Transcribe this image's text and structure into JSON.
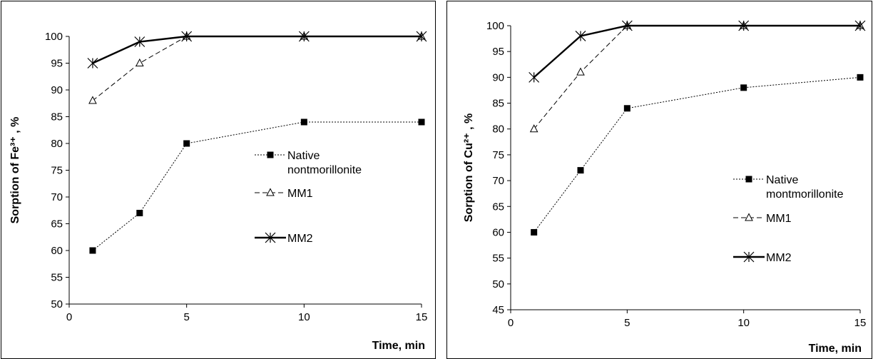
{
  "chart_data": [
    {
      "type": "line",
      "title": "",
      "xlabel": "Time, min",
      "ylabel": "Sorption of Fe³⁺ , %",
      "xlim": [
        0,
        15
      ],
      "ylim": [
        50,
        100
      ],
      "xticks": [
        0,
        5,
        10,
        15
      ],
      "yticks": [
        50,
        55,
        60,
        65,
        70,
        75,
        80,
        85,
        90,
        95,
        100
      ],
      "grid": false,
      "legend_position": "right",
      "series": [
        {
          "name": "Native nontmorillonite",
          "legend_lines": [
            "Native",
            "nontmorillonite"
          ],
          "style": "dotted",
          "marker": "filled-square",
          "color": "#000000",
          "x": [
            1,
            3,
            5,
            10,
            15
          ],
          "y": [
            60,
            67,
            80,
            84,
            84
          ]
        },
        {
          "name": "MM1",
          "legend_lines": [
            "MM1"
          ],
          "style": "dashed",
          "marker": "open-triangle",
          "color": "#000000",
          "x": [
            1,
            3,
            5,
            10,
            15
          ],
          "y": [
            88,
            95,
            100,
            100,
            100
          ]
        },
        {
          "name": "MM2",
          "legend_lines": [
            "MM2"
          ],
          "style": "solid",
          "marker": "x-star",
          "color": "#000000",
          "x": [
            1,
            3,
            5,
            10,
            15
          ],
          "y": [
            95,
            99,
            100,
            100,
            100
          ]
        }
      ]
    },
    {
      "type": "line",
      "title": "",
      "xlabel": "Time, min",
      "ylabel": "Sorption of Cu²⁺ , %",
      "xlim": [
        0,
        15
      ],
      "ylim": [
        45,
        100
      ],
      "xticks": [
        0,
        5,
        10,
        15
      ],
      "yticks": [
        45,
        50,
        55,
        60,
        65,
        70,
        75,
        80,
        85,
        90,
        95,
        100
      ],
      "grid": false,
      "legend_position": "right",
      "series": [
        {
          "name": "Native montmorillonite",
          "legend_lines": [
            "Native",
            "montmorillonite"
          ],
          "style": "dotted",
          "marker": "filled-square",
          "color": "#000000",
          "x": [
            1,
            3,
            5,
            10,
            15
          ],
          "y": [
            60,
            72,
            84,
            88,
            90
          ]
        },
        {
          "name": "MM1",
          "legend_lines": [
            "MM1"
          ],
          "style": "dashed",
          "marker": "open-triangle",
          "color": "#000000",
          "x": [
            1,
            3,
            5,
            10,
            15
          ],
          "y": [
            80,
            91,
            100,
            100,
            100
          ]
        },
        {
          "name": "MM2",
          "legend_lines": [
            "MM2"
          ],
          "style": "solid",
          "marker": "x-star",
          "color": "#000000",
          "x": [
            1,
            3,
            5,
            10,
            15
          ],
          "y": [
            90,
            98,
            100,
            100,
            100
          ]
        }
      ]
    }
  ]
}
